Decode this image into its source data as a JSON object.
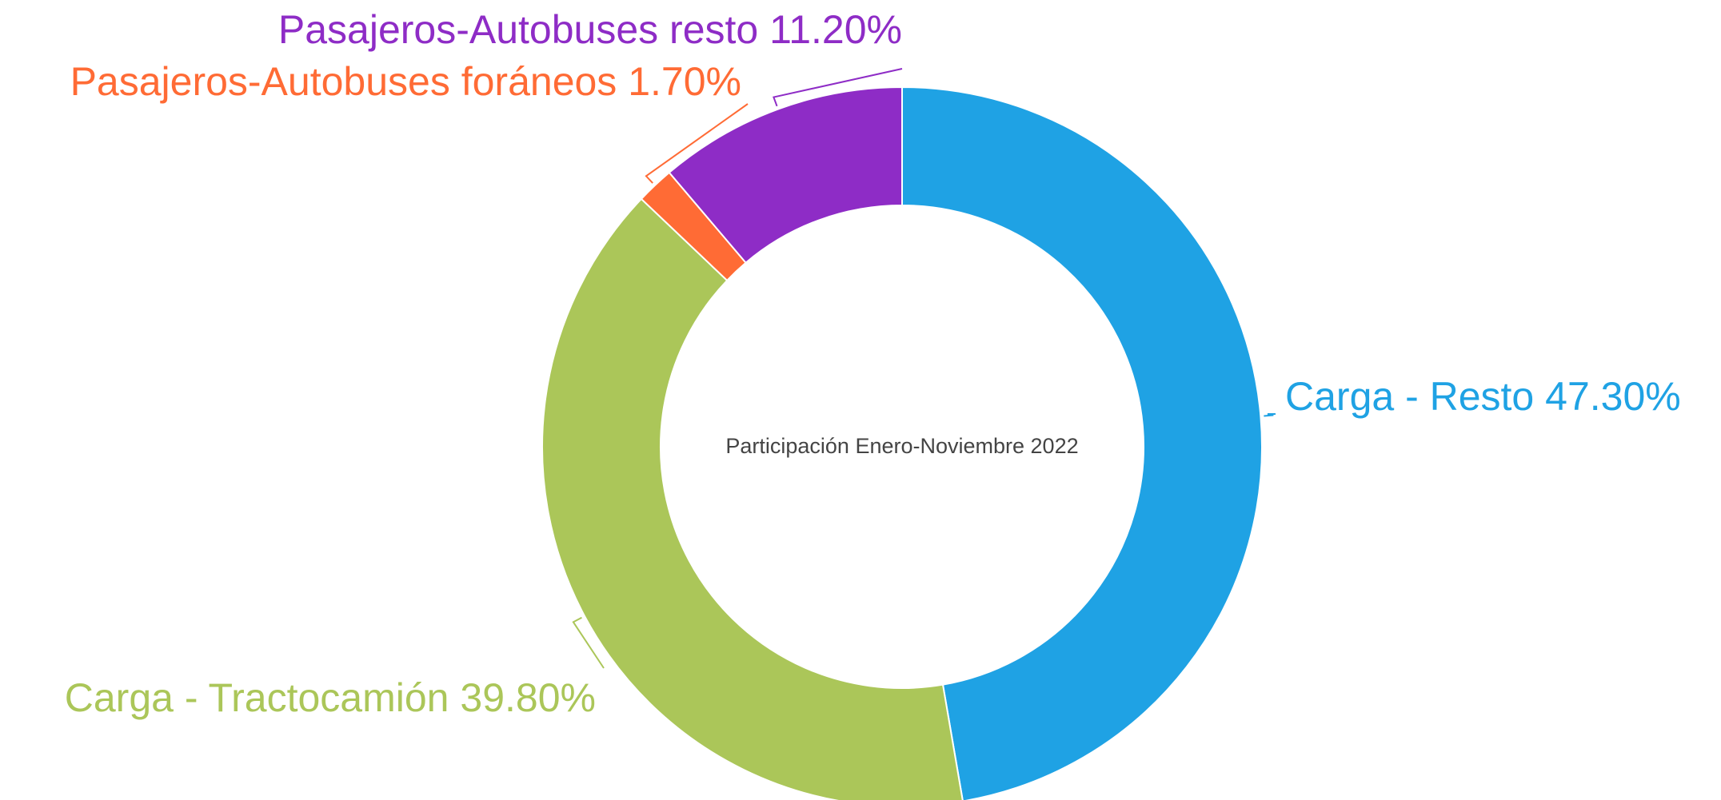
{
  "chart_data": {
    "type": "donut",
    "title": "Participación Enero-Noviembre 2022",
    "categories": [
      "Carga - Resto",
      "Carga - Tractocamión",
      "Pasajeros-Autobuses foráneos",
      "Pasajeros-Autobuses resto"
    ],
    "values": [
      47.3,
      39.8,
      1.7,
      11.2
    ],
    "value_labels": [
      "47.30%",
      "39.80%",
      "1.70%",
      "11.20%"
    ],
    "colors": [
      "#1fa2e4",
      "#abc659",
      "#ff6b35",
      "#8e2cc6"
    ]
  }
}
